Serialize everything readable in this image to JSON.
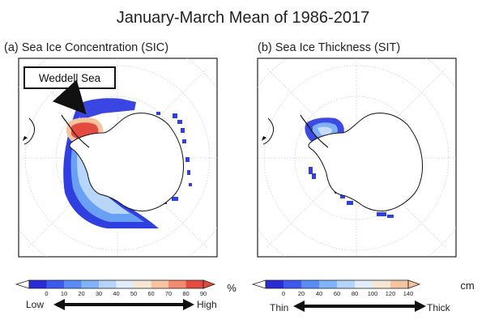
{
  "title": "January-March Mean of 1986-2017",
  "panels": [
    {
      "label": "(a) Sea Ice Concentration (SIC)",
      "callout": "Weddell Sea",
      "colorbar": {
        "ticks": [
          "0",
          "10",
          "20",
          "30",
          "40",
          "50",
          "60",
          "70",
          "80",
          "90"
        ],
        "unit": "%",
        "low_label": "Low",
        "high_label": "High",
        "colors": [
          "#2a2ad6",
          "#3c5af0",
          "#5a8cf5",
          "#82b3fa",
          "#b4d4fb",
          "#e2edf9",
          "#f6e6d6",
          "#f7c4a0",
          "#f28b6d",
          "#e54a3f"
        ]
      }
    },
    {
      "label": "(b) Sea Ice Thickness (SIT)",
      "colorbar": {
        "ticks": [
          "0",
          "20",
          "40",
          "60",
          "80",
          "100",
          "120",
          "140"
        ],
        "unit": "cm",
        "low_label": "Thin",
        "high_label": "Thick",
        "colors": [
          "#2a2ad6",
          "#3c5af0",
          "#5a8cf5",
          "#82b3fa",
          "#b4d4fb",
          "#e2edf9",
          "#f6e6d6",
          "#f7c4a0"
        ]
      }
    }
  ]
}
